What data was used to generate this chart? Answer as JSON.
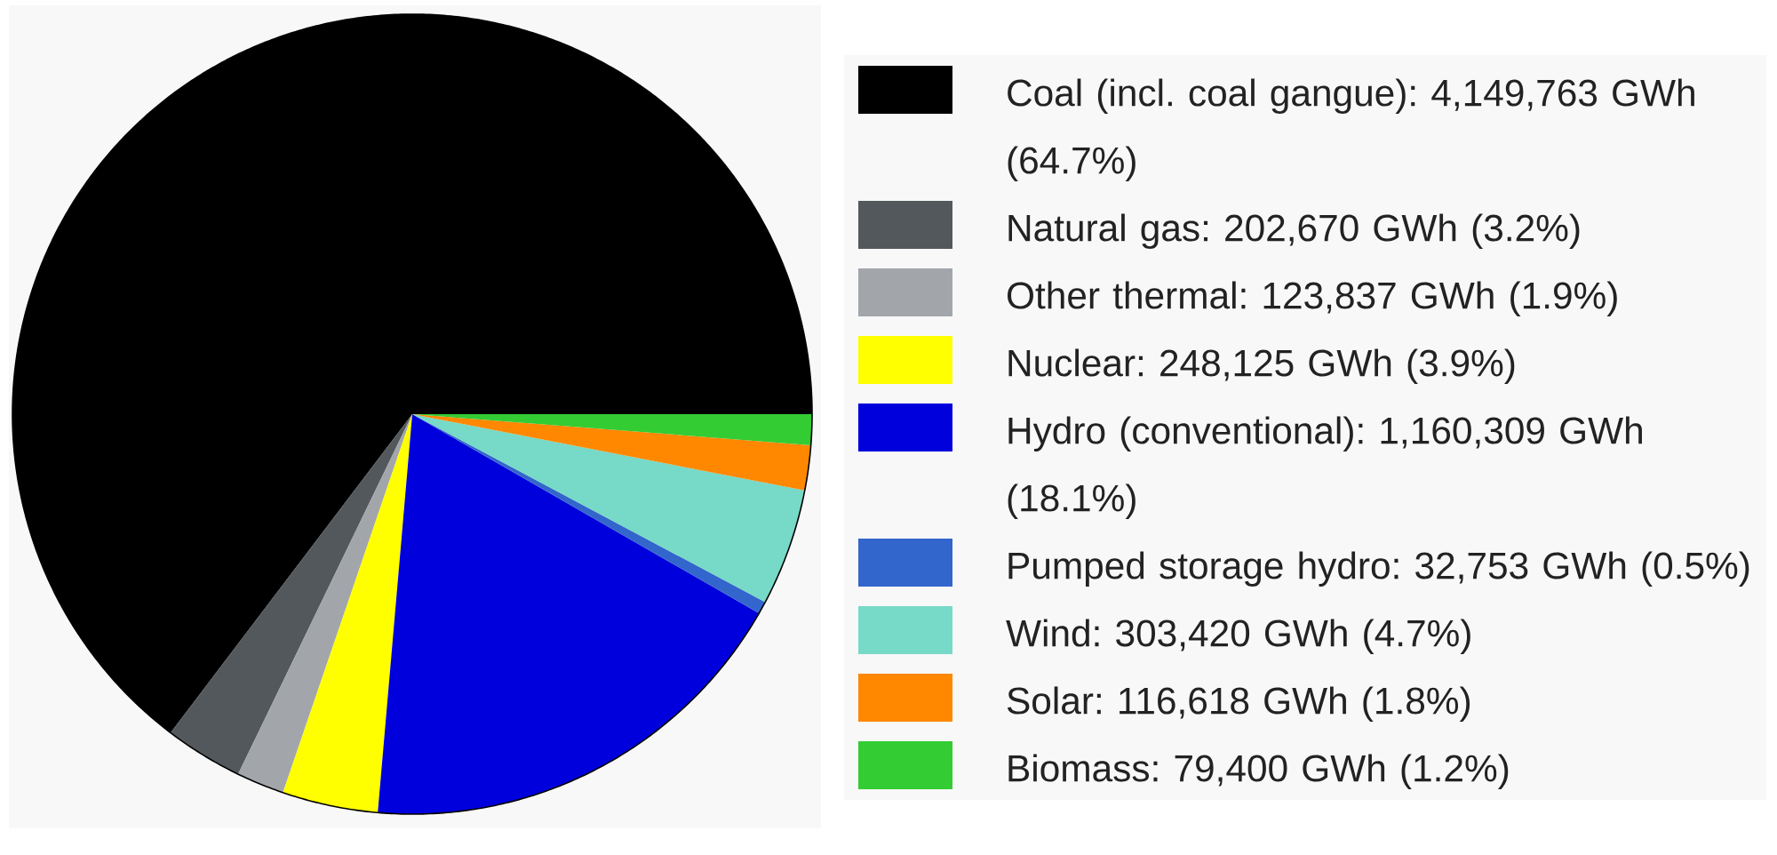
{
  "chart_data": {
    "type": "pie",
    "categories": [
      "Coal (incl. coal gangue): 4,149,763 GWh (64.7%)",
      "Natural gas: 202,670 GWh (3.2%)",
      "Other thermal: 123,837 GWh (1.9%)",
      "Nuclear: 248,125 GWh (3.9%)",
      "Hydro (conventional): 1,160,309 GWh (18.1%)",
      "Pumped storage hydro: 32,753 GWh (0.5%)",
      "Wind: 303,420 GWh (4.7%)",
      "Solar: 116,618 GWh (1.8%)",
      "Biomass: 79,400 GWh (1.2%)"
    ],
    "values": [
      4149763,
      202670,
      123837,
      248125,
      1160309,
      32753,
      303420,
      116618,
      79400
    ],
    "colors": [
      "#000000",
      "#53585c",
      "#a2a6ab",
      "#ffff00",
      "#0000dd",
      "#3366cc",
      "#77d9c7",
      "#ff8800",
      "#33cc33"
    ],
    "legend": "right"
  }
}
